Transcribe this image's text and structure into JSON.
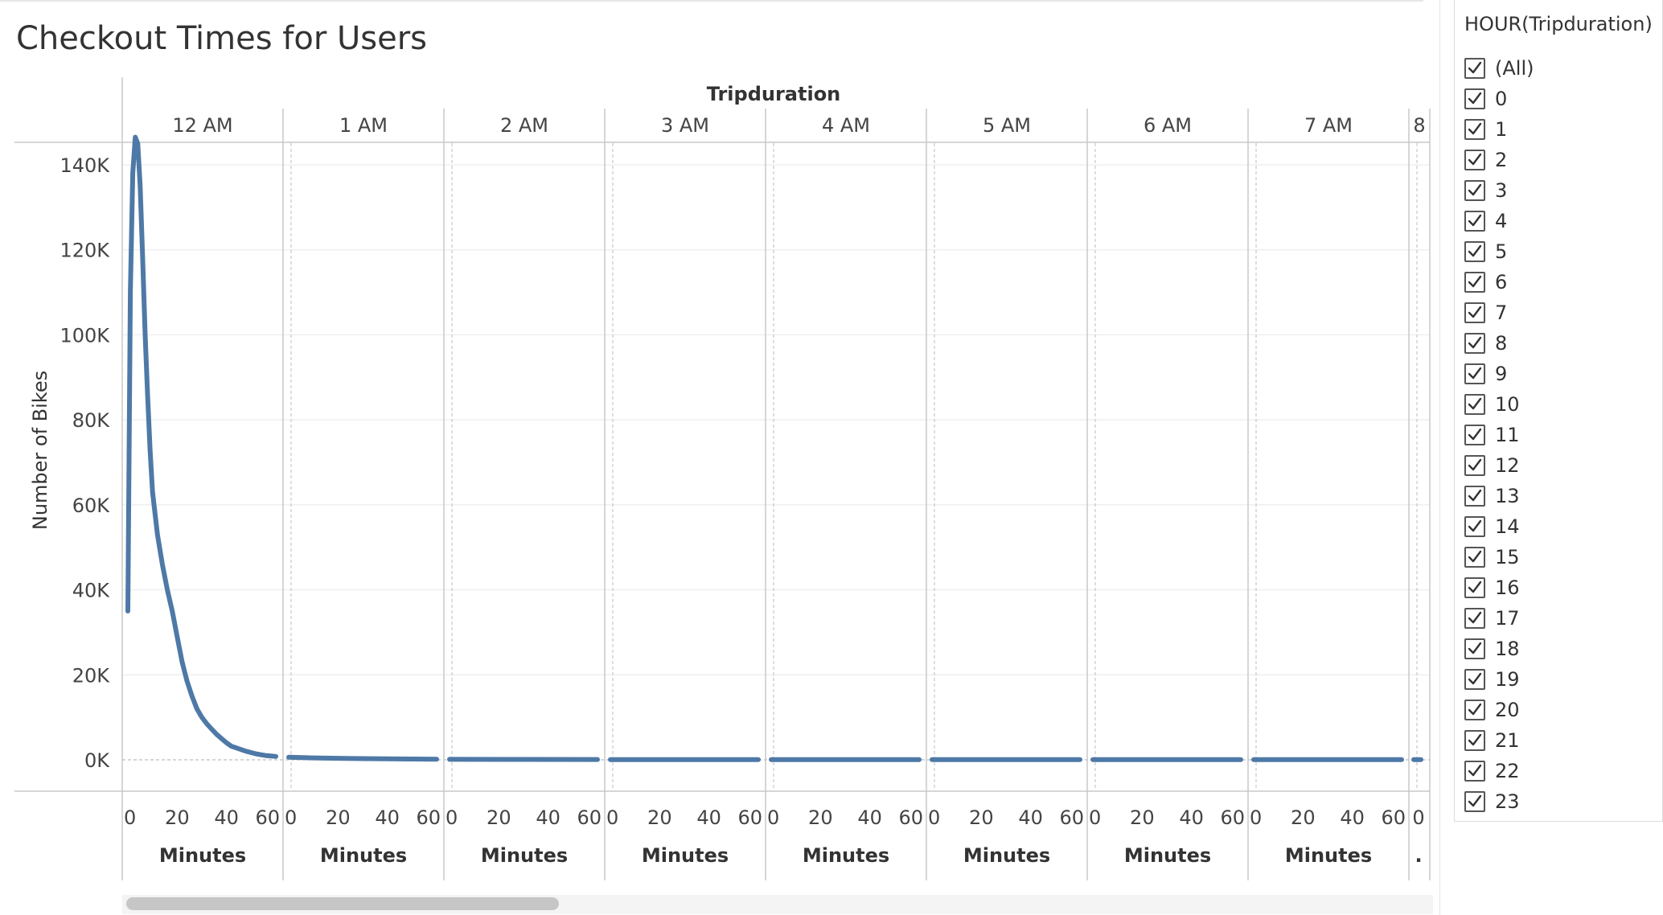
{
  "title": "Checkout Times for Users",
  "chart_data": {
    "type": "line",
    "title": "Checkout Times for Users",
    "ylabel": "Number of Bikes",
    "column_header": "Tripduration",
    "xlabel": "Minutes",
    "ylim": [
      0,
      150000
    ],
    "y_ticks": [
      "0K",
      "20K",
      "40K",
      "60K",
      "80K",
      "100K",
      "120K",
      "140K"
    ],
    "y_tick_values": [
      0,
      20000,
      40000,
      60000,
      80000,
      100000,
      120000,
      140000
    ],
    "x_ticks": [
      "0",
      "20",
      "40",
      "60"
    ],
    "x_tick_values": [
      0,
      20,
      40,
      60
    ],
    "panels": [
      "12 AM",
      "1 AM",
      "2 AM",
      "3 AM",
      "4 AM",
      "5 AM",
      "6 AM",
      "7 AM",
      "8"
    ],
    "last_panel_xlabel": ".",
    "last_panel_x_tick": "0",
    "grid": true,
    "series": [
      {
        "panel": "12 AM",
        "x": [
          0,
          1,
          2,
          3,
          4,
          5,
          6,
          7,
          8,
          9,
          10,
          12,
          14,
          16,
          18,
          20,
          22,
          24,
          26,
          28,
          30,
          32,
          34,
          36,
          38,
          40,
          42,
          44,
          46,
          48,
          50,
          52,
          54,
          56,
          58,
          60
        ],
        "y": [
          35000,
          110000,
          138000,
          146500,
          145000,
          135000,
          118000,
          100000,
          86000,
          73000,
          63000,
          53000,
          46000,
          40000,
          35000,
          29000,
          23000,
          18500,
          15000,
          12000,
          10000,
          8500,
          7200,
          6000,
          5000,
          4000,
          3200,
          2800,
          2400,
          2000,
          1700,
          1400,
          1200,
          1000,
          900,
          800
        ]
      },
      {
        "panel": "1 AM",
        "x": [
          0,
          10,
          20,
          30,
          40,
          50,
          60
        ],
        "y": [
          600,
          450,
          350,
          280,
          230,
          180,
          150
        ]
      },
      {
        "panel": "2 AM",
        "x": [
          0,
          30,
          60
        ],
        "y": [
          120,
          90,
          70
        ]
      },
      {
        "panel": "3 AM",
        "x": [
          0,
          30,
          60
        ],
        "y": [
          60,
          50,
          40
        ]
      },
      {
        "panel": "4 AM",
        "x": [
          0,
          30,
          60
        ],
        "y": [
          50,
          40,
          30
        ]
      },
      {
        "panel": "5 AM",
        "x": [
          0,
          30,
          60
        ],
        "y": [
          50,
          40,
          30
        ]
      },
      {
        "panel": "6 AM",
        "x": [
          0,
          30,
          60
        ],
        "y": [
          50,
          40,
          30
        ]
      },
      {
        "panel": "7 AM",
        "x": [
          0,
          30,
          60
        ],
        "y": [
          50,
          40,
          30
        ]
      },
      {
        "panel": "8",
        "x": [
          0,
          5
        ],
        "y": [
          40,
          40
        ]
      }
    ],
    "line_color": "#4e79a7"
  },
  "filter": {
    "title": "HOUR(Tripduration)",
    "items": [
      "(All)",
      "0",
      "1",
      "2",
      "3",
      "4",
      "5",
      "6",
      "7",
      "8",
      "9",
      "10",
      "11",
      "12",
      "13",
      "14",
      "15",
      "16",
      "17",
      "18",
      "19",
      "20",
      "21",
      "22",
      "23"
    ]
  }
}
